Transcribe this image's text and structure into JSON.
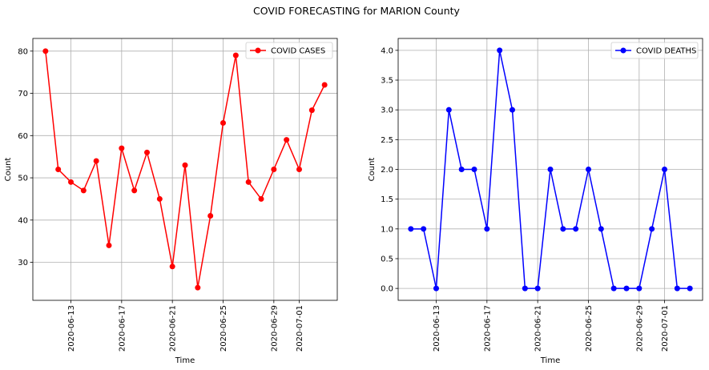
{
  "figure_title": "COVID FORECASTING for MARION County",
  "chart_data": [
    {
      "type": "line",
      "xlabel": "Time",
      "ylabel": "Count",
      "x_dates": [
        "2020-06-11",
        "2020-06-12",
        "2020-06-13",
        "2020-06-14",
        "2020-06-15",
        "2020-06-16",
        "2020-06-17",
        "2020-06-18",
        "2020-06-19",
        "2020-06-20",
        "2020-06-21",
        "2020-06-22",
        "2020-06-23",
        "2020-06-24",
        "2020-06-25",
        "2020-06-26",
        "2020-06-27",
        "2020-06-28",
        "2020-06-29",
        "2020-06-30",
        "2020-07-01",
        "2020-07-02",
        "2020-07-03"
      ],
      "xtick_labels": [
        "2020-06-13",
        "2020-06-17",
        "2020-06-21",
        "2020-06-25",
        "2020-06-29",
        "2020-07-01"
      ],
      "xlim": [
        "2020-06-10",
        "2020-07-04"
      ],
      "ylim": [
        21,
        83
      ],
      "yticks": [
        30,
        40,
        50,
        60,
        70,
        80
      ],
      "grid": true,
      "legend_loc": "upper right",
      "series": [
        {
          "name": "COVID CASES",
          "color": "#ff0000",
          "values": [
            80,
            52,
            49,
            47,
            54,
            34,
            57,
            47,
            56,
            45,
            29,
            53,
            24,
            41,
            63,
            79,
            49,
            45,
            52,
            59,
            52,
            66,
            72
          ]
        }
      ]
    },
    {
      "type": "line",
      "xlabel": "Time",
      "ylabel": "Count",
      "x_dates": [
        "2020-06-11",
        "2020-06-12",
        "2020-06-13",
        "2020-06-14",
        "2020-06-15",
        "2020-06-16",
        "2020-06-17",
        "2020-06-18",
        "2020-06-19",
        "2020-06-20",
        "2020-06-21",
        "2020-06-22",
        "2020-06-23",
        "2020-06-24",
        "2020-06-25",
        "2020-06-26",
        "2020-06-27",
        "2020-06-28",
        "2020-06-29",
        "2020-06-30",
        "2020-07-01",
        "2020-07-02",
        "2020-07-03"
      ],
      "xtick_labels": [
        "2020-06-13",
        "2020-06-17",
        "2020-06-21",
        "2020-06-25",
        "2020-06-29",
        "2020-07-01"
      ],
      "xlim": [
        "2020-06-10",
        "2020-07-04"
      ],
      "ylim": [
        -0.2,
        4.2
      ],
      "yticks": [
        "0.0",
        "0.5",
        "1.0",
        "1.5",
        "2.0",
        "2.5",
        "3.0",
        "3.5",
        "4.0"
      ],
      "grid": true,
      "legend_loc": "upper right",
      "series": [
        {
          "name": "COVID DEATHS",
          "color": "#0000ff",
          "values": [
            1,
            1,
            0,
            3,
            2,
            2,
            1,
            4,
            3,
            0,
            0,
            2,
            1,
            1,
            2,
            1,
            0,
            0,
            0,
            1,
            2,
            0,
            0
          ]
        }
      ]
    }
  ]
}
